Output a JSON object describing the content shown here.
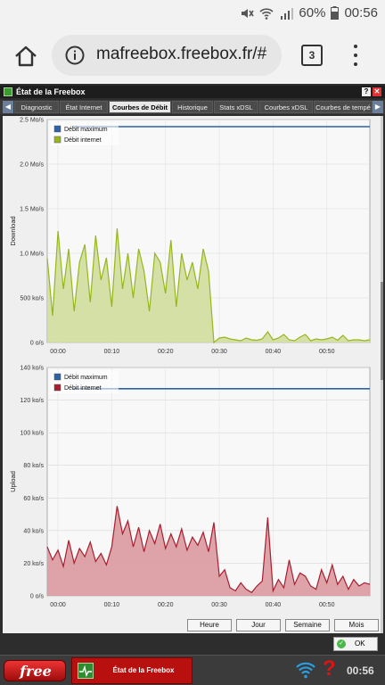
{
  "status_bar": {
    "battery_percent": "60%",
    "clock": "00:56"
  },
  "browser": {
    "url": "mafreebox.freebox.fr/#",
    "tab_count": "3"
  },
  "window": {
    "title": "État de la Freebox",
    "help_label": "?",
    "close_label": "✕"
  },
  "tabs": [
    {
      "label": "Diagnostic",
      "active": false
    },
    {
      "label": "État Internet",
      "active": false
    },
    {
      "label": "Courbes de Débit",
      "active": true
    },
    {
      "label": "Historique",
      "active": false
    },
    {
      "label": "Stats xDSL",
      "active": false
    },
    {
      "label": "Courbes xDSL",
      "active": false
    },
    {
      "label": "Courbes de tempé",
      "active": false
    }
  ],
  "period_buttons": [
    "Heure",
    "Jour",
    "Semaine",
    "Mois"
  ],
  "ok_label": "OK",
  "taskbar": {
    "start_label": "free",
    "task_label": "État de la Freebox",
    "clock": "00:56",
    "help_glyph": "?"
  },
  "colors": {
    "max_line": "#2b62a8",
    "download_line": "#96b61c",
    "download_fill": "#cfdc99",
    "upload_line": "#a81e2e",
    "upload_fill": "#d9949a"
  },
  "chart_data": [
    {
      "type": "area",
      "ylabel": "Download",
      "yticks": [
        "0 o/s",
        "500 ko/s",
        "1.0 Mo/s",
        "1.5 Mo/s",
        "2.0 Mo/s",
        "2.5 Mo/s"
      ],
      "ylim": [
        0,
        2500
      ],
      "xticks": [
        "00:00",
        "00:10",
        "00:20",
        "00:30",
        "00:40",
        "00:50"
      ],
      "xlim": [
        -2,
        58
      ],
      "legend": [
        "Débit maximum",
        "Débit internet"
      ],
      "legend_position": "top-left",
      "max_value": 2420,
      "series": [
        {
          "name": "Débit internet",
          "x": [
            -2,
            -1,
            0,
            1,
            2,
            3,
            4,
            5,
            6,
            7,
            8,
            9,
            10,
            11,
            12,
            13,
            14,
            15,
            16,
            17,
            18,
            19,
            20,
            21,
            22,
            23,
            24,
            25,
            26,
            27,
            28,
            29,
            30,
            31,
            32,
            33,
            34,
            35,
            36,
            37,
            38,
            39,
            40,
            41,
            42,
            43,
            44,
            45,
            46,
            47,
            48,
            49,
            50,
            51,
            52,
            53,
            54,
            55,
            56,
            57,
            58
          ],
          "values": [
            950,
            300,
            1250,
            600,
            1050,
            350,
            900,
            1100,
            450,
            1200,
            700,
            950,
            400,
            1280,
            600,
            1000,
            500,
            1050,
            800,
            350,
            1000,
            900,
            550,
            1150,
            400,
            1000,
            700,
            900,
            600,
            1050,
            800,
            0,
            50,
            60,
            40,
            30,
            20,
            50,
            30,
            25,
            40,
            120,
            30,
            50,
            90,
            30,
            20,
            60,
            90,
            20,
            40,
            30,
            40,
            60,
            25,
            80,
            20,
            30,
            30,
            20,
            30
          ]
        }
      ]
    },
    {
      "type": "area",
      "ylabel": "Upload",
      "yticks": [
        "0 o/s",
        "20 ko/s",
        "40 ko/s",
        "60 ko/s",
        "80 ko/s",
        "100 ko/s",
        "120 ko/s",
        "140 ko/s"
      ],
      "ylim": [
        0,
        140
      ],
      "xticks": [
        "00:00",
        "00:10",
        "00:20",
        "00:30",
        "00:40",
        "00:50"
      ],
      "xlim": [
        -2,
        58
      ],
      "legend": [
        "Débit maximum",
        "Débit internet"
      ],
      "legend_position": "top-left",
      "max_value": 127,
      "series": [
        {
          "name": "Débit internet",
          "x": [
            -2,
            -1,
            0,
            1,
            2,
            3,
            4,
            5,
            6,
            7,
            8,
            9,
            10,
            11,
            12,
            13,
            14,
            15,
            16,
            17,
            18,
            19,
            20,
            21,
            22,
            23,
            24,
            25,
            26,
            27,
            28,
            29,
            30,
            31,
            32,
            33,
            34,
            35,
            36,
            37,
            38,
            39,
            40,
            41,
            42,
            43,
            44,
            45,
            46,
            47,
            48,
            49,
            50,
            51,
            52,
            53,
            54,
            55,
            56,
            57,
            58
          ],
          "values": [
            30,
            22,
            28,
            18,
            34,
            20,
            29,
            24,
            33,
            21,
            26,
            19,
            30,
            55,
            38,
            46,
            30,
            42,
            27,
            40,
            32,
            44,
            29,
            38,
            30,
            41,
            28,
            36,
            31,
            39,
            27,
            45,
            12,
            16,
            5,
            3,
            8,
            4,
            2,
            6,
            9,
            48,
            3,
            10,
            5,
            22,
            7,
            14,
            12,
            6,
            4,
            16,
            8,
            19,
            7,
            12,
            4,
            10,
            6,
            8,
            7
          ]
        }
      ]
    }
  ]
}
